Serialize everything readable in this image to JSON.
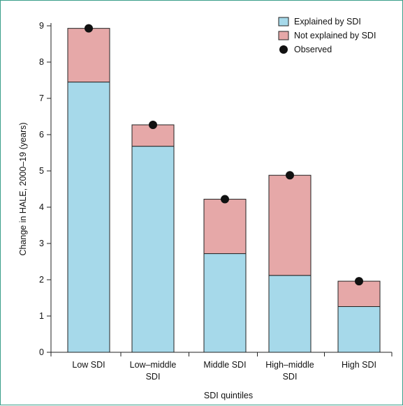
{
  "chart_data": {
    "type": "bar",
    "stacked": true,
    "categories": [
      "Low SDI",
      "Low–middle SDI",
      "Middle SDI",
      "High–middle SDI",
      "High SDI"
    ],
    "category_lines": [
      [
        "Low SDI"
      ],
      [
        "Low–middle",
        "SDI"
      ],
      [
        "Middle SDI"
      ],
      [
        "High–middle",
        "SDI"
      ],
      [
        "High SDI"
      ]
    ],
    "series": [
      {
        "name": "Explained by SDI",
        "values": [
          7.45,
          5.68,
          2.72,
          2.12,
          1.26
        ],
        "color": "#a6d9ea"
      },
      {
        "name": "Not explained by SDI",
        "values": [
          1.48,
          0.59,
          1.5,
          2.76,
          0.7
        ],
        "color": "#e6a8a8"
      }
    ],
    "observed": {
      "name": "Observed",
      "values": [
        8.93,
        6.27,
        4.22,
        4.88,
        1.96
      ],
      "color": "#111111"
    },
    "xlabel": "SDI quintiles",
    "ylabel": "Change in HALE, 2000–19 (years)",
    "ylim": [
      0,
      9
    ],
    "yticks": [
      "0",
      "1",
      "2",
      "3",
      "4",
      "5",
      "6",
      "7",
      "8",
      "9"
    ],
    "legend_position": "top-right",
    "grid": false
  }
}
